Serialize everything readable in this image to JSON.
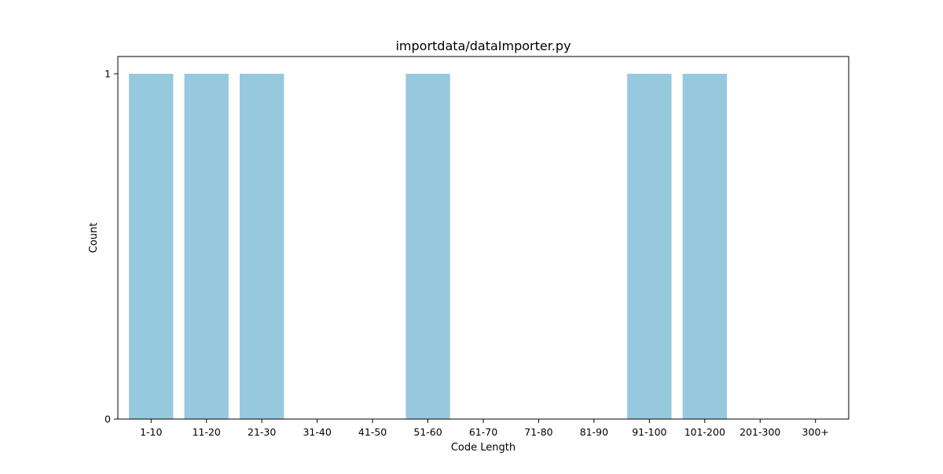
{
  "chart_data": {
    "type": "bar",
    "title": "importdata/dataImporter.py",
    "xlabel": "Code Length",
    "ylabel": "Count",
    "categories": [
      "1-10",
      "11-20",
      "21-30",
      "31-40",
      "41-50",
      "51-60",
      "61-70",
      "71-80",
      "81-90",
      "91-100",
      "101-200",
      "201-300",
      "300+"
    ],
    "values": [
      1,
      1,
      1,
      0,
      0,
      1,
      0,
      0,
      0,
      1,
      1,
      0,
      0
    ],
    "ylim": [
      0,
      1.05
    ],
    "yticks": [
      0,
      1
    ],
    "grid": false,
    "legend": "none",
    "bar_color": "#96C9DE",
    "axis_color": "#000000"
  }
}
